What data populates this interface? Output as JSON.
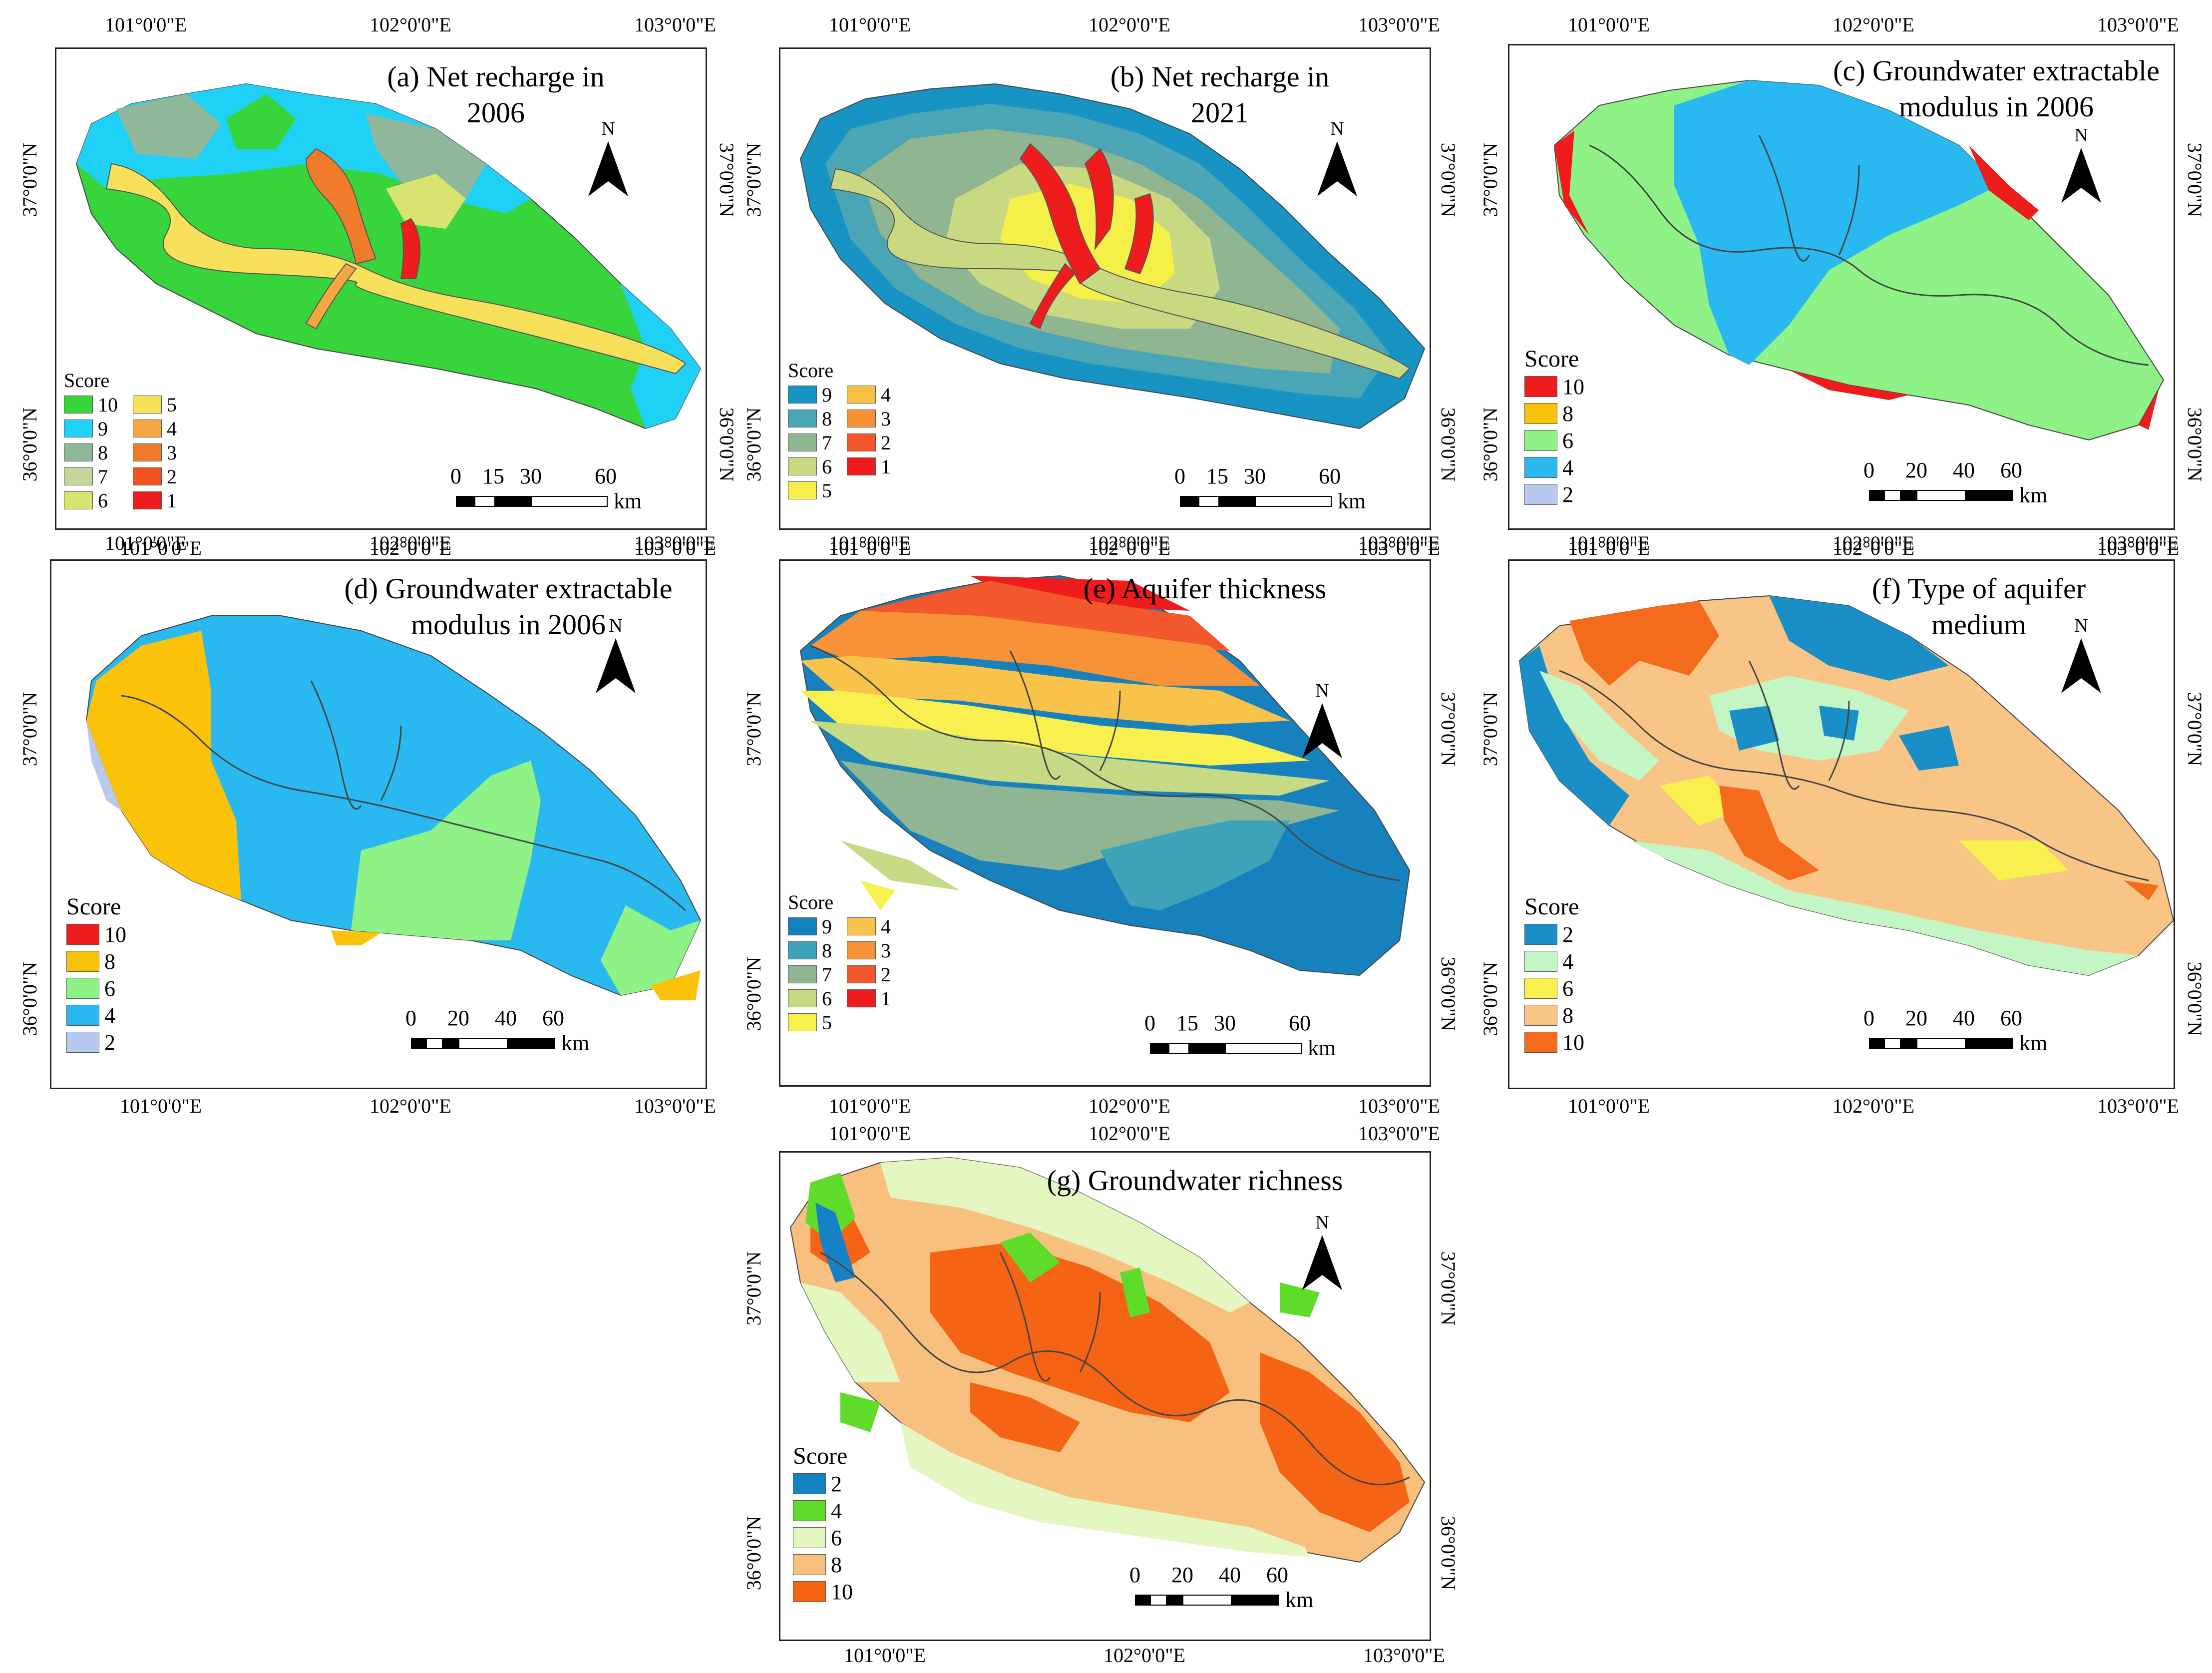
{
  "colors": {
    "net_recharge_2006": {
      "10": "#37d43c",
      "9": "#1fd2f5",
      "8": "#8fb79a",
      "7": "#c4d69a",
      "6": "#d8e370",
      "5": "#f7e15a",
      "4": "#f5a742",
      "3": "#f07b2c",
      "2": "#ef5320",
      "1": "#ee1c1c"
    },
    "net_recharge_2021": {
      "9": "#1794c4",
      "8": "#4aa6b5",
      "7": "#8fb591",
      "6": "#c9d981",
      "5": "#f5ef4a",
      "4": "#f7c045",
      "3": "#f78f33",
      "2": "#f2562a",
      "1": "#ee1c1c"
    },
    "extractable_modulus": {
      "10": "#ee1c1c",
      "8": "#fbc20a",
      "6": "#8ff286",
      "4": "#2ab8f0",
      "2": "#b8c9ef"
    },
    "aquifer_thickness": {
      "9": "#1681bd",
      "8": "#3ea3b8",
      "7": "#8fb592",
      "6": "#c6d985",
      "5": "#f7f04e",
      "4": "#f9c24a",
      "3": "#f79236",
      "2": "#f2582c",
      "1": "#ee1c1c"
    },
    "aquifer_medium": {
      "2": "#1a8fc7",
      "4": "#c4f5c4",
      "6": "#f7f04e",
      "8": "#f9c586",
      "10": "#f56b1c"
    },
    "richness": {
      "2": "#1682c6",
      "4": "#5fdb2a",
      "6": "#e4f7c1",
      "8": "#f7c07e",
      "10": "#f56414"
    }
  },
  "panels": [
    {
      "id": "a",
      "title_lines": [
        "(a) Net recharge in",
        "2006"
      ],
      "top_lon": [
        "101°0'0\"E",
        "102°0'0\"E",
        "103°0'0\"E"
      ],
      "bottom_lon": [
        "101°0'0\"E",
        "102°0'0\"E",
        "103°0'0\"E"
      ],
      "left_lat": [
        "37°0'0\"N",
        "36°0'0\"N"
      ],
      "right_lat": [
        "37°0'0\"N",
        "36°0'0\"N"
      ],
      "north": "N",
      "legend_title": "Score",
      "legend_col1": [
        "10",
        "9",
        "8",
        "7",
        "6"
      ],
      "legend_col2": [
        "5",
        "4",
        "3",
        "2",
        "1"
      ],
      "scale_labels": [
        "0",
        "15",
        "30",
        "60"
      ],
      "scale_unit": "km"
    },
    {
      "id": "b",
      "title_lines": [
        "(b) Net recharge in",
        "2021"
      ],
      "top_lon": [
        "101°0'0\"E",
        "102°0'0\"E",
        "103°0'0\"E"
      ],
      "bottom_lon": [
        "101°0'0\"E",
        "102°0'0\"E",
        "103°0'0\"E"
      ],
      "left_lat": [
        "37°0'0\"N",
        "36°0'0\"N"
      ],
      "right_lat": [
        "37°0'0\"N",
        "36°0'0\"N"
      ],
      "north": "N",
      "legend_title": "Score",
      "legend_col1": [
        "9",
        "8",
        "7",
        "6",
        "5"
      ],
      "legend_col2": [
        "4",
        "3",
        "2",
        "1"
      ],
      "scale_labels": [
        "0",
        "15",
        "30",
        "60"
      ],
      "scale_unit": "km"
    },
    {
      "id": "c",
      "title_lines": [
        "(c) Groundwater extractable",
        "modulus in 2006"
      ],
      "top_lon": [
        "101°0'0\"E",
        "102°0'0\"E",
        "103°0'0\"E"
      ],
      "bottom_lon": [
        "101°0'0\"E",
        "102°0'0\"E",
        "103°0'0\"E"
      ],
      "left_lat": [
        "37°0'0\"N",
        "36°0'0\"N"
      ],
      "right_lat": [
        "37°0'0\"N",
        "36°0'0\"N"
      ],
      "north": "N",
      "legend_title": "Score",
      "legend_items": [
        "10",
        "8",
        "6",
        "4",
        "2"
      ],
      "scale_labels": [
        "0",
        "20",
        "40",
        "60"
      ],
      "scale_unit": "km"
    },
    {
      "id": "d",
      "title_lines": [
        "(d) Groundwater extractable",
        "modulus in 2006"
      ],
      "top_lon": [
        "101°0'0\"E",
        "102°0'0\"E",
        "103°0'0\"E"
      ],
      "bottom_lon": [
        "101°0'0\"E",
        "102°0'0\"E",
        "103°0'0\"E"
      ],
      "left_lat": [
        "37°0'0\"N",
        "36°0'0\"N"
      ],
      "right_lat": [],
      "north": "N",
      "legend_title": "Score",
      "legend_items": [
        "10",
        "8",
        "6",
        "4",
        "2"
      ],
      "scale_labels": [
        "0",
        "20",
        "40",
        "60"
      ],
      "scale_unit": "km"
    },
    {
      "id": "e",
      "title_lines": [
        "(e) Aquifer thickness"
      ],
      "top_lon": [
        "101°0'0\"E",
        "102°0'0\"E",
        "103°0'0\"E"
      ],
      "bottom_lon": [
        "101°0'0\"E",
        "102°0'0\"E",
        "103°0'0\"E"
      ],
      "left_lat": [
        "37°0'0\"N",
        "36°0'0\"N"
      ],
      "right_lat": [
        "37°0'0\"N",
        "36°0'0\"N"
      ],
      "north": "N",
      "legend_title": "Score",
      "legend_col1": [
        "9",
        "8",
        "7",
        "6",
        "5"
      ],
      "legend_col2": [
        "4",
        "3",
        "2",
        "1"
      ],
      "scale_labels": [
        "0",
        "15",
        "30",
        "60"
      ],
      "scale_unit": "km"
    },
    {
      "id": "f",
      "title_lines": [
        "(f) Type of aquifer",
        "medium"
      ],
      "top_lon": [
        "101°0'0\"E",
        "102°0'0\"E",
        "103°0'0\"E"
      ],
      "bottom_lon": [
        "101°0'0\"E",
        "102°0'0\"E",
        "103°0'0\"E"
      ],
      "left_lat": [
        "37°0'0\"N",
        "36°0'0\"N"
      ],
      "right_lat": [
        "37°0'0\"N",
        "36°0'0\"N"
      ],
      "north": "N",
      "legend_title": "Score",
      "legend_items": [
        "2",
        "4",
        "6",
        "8",
        "10"
      ],
      "scale_labels": [
        "0",
        "20",
        "40",
        "60"
      ],
      "scale_unit": "km"
    },
    {
      "id": "g",
      "title_lines": [
        "(g) Groundwater richness"
      ],
      "top_lon": [
        "101°0'0\"E",
        "102°0'0\"E",
        "103°0'0\"E"
      ],
      "bottom_lon": [
        "101°0'0\"E",
        "102°0'0\"E",
        "103°0'0\"E"
      ],
      "left_lat": [
        "37°0'0\"N",
        "36°0'0\"N"
      ],
      "right_lat": [
        "37°0'0\"N",
        "36°0'0\"N"
      ],
      "north": "N",
      "legend_title": "Score",
      "legend_items": [
        "2",
        "4",
        "6",
        "8",
        "10"
      ],
      "scale_labels": [
        "0",
        "20",
        "40",
        "60"
      ],
      "scale_unit": "km"
    }
  ]
}
